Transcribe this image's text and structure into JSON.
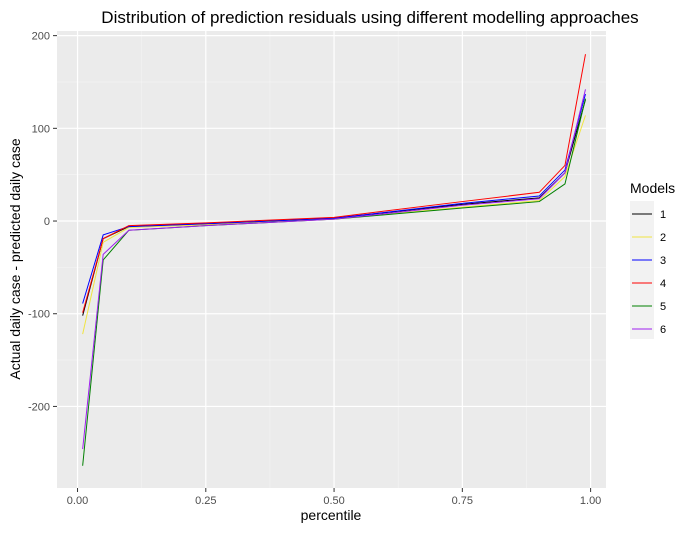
{
  "chart_data": {
    "type": "line",
    "title": "Distribution of prediction residuals using different modelling approaches",
    "xlabel": "percentile",
    "ylabel": "Actual daily case - predicted daily case",
    "xlim": [
      -0.04,
      1.03
    ],
    "ylim": [
      -288,
      205
    ],
    "xticks": [
      0,
      0.25,
      0.5,
      0.75,
      1
    ],
    "xtick_labels": [
      "0.00",
      "0.25",
      "0.50",
      "0.75",
      "1.00"
    ],
    "yticks": [
      -200,
      -100,
      0,
      100,
      200
    ],
    "ytick_labels": [
      "-200",
      "-100",
      "0",
      "100",
      "200"
    ],
    "grid": true,
    "legend": {
      "title": "Models",
      "position": "right"
    },
    "x": [
      0.01,
      0.05,
      0.1,
      0.25,
      0.5,
      0.75,
      0.9,
      0.95,
      0.99
    ],
    "series": [
      {
        "name": "1",
        "color": "#000000",
        "values": [
          -102,
          -19,
          -6,
          -3,
          3,
          18,
          25,
          52,
          131
        ]
      },
      {
        "name": "2",
        "color": "#f0e442",
        "values": [
          -122,
          -23,
          -7,
          -4,
          2,
          15,
          22,
          48,
          114
        ]
      },
      {
        "name": "3",
        "color": "#0000ff",
        "values": [
          -89,
          -15,
          -6,
          -3,
          3,
          19,
          27,
          55,
          137
        ]
      },
      {
        "name": "4",
        "color": "#ff0000",
        "values": [
          -99,
          -19,
          -5,
          -2,
          4,
          21,
          31,
          60,
          180
        ]
      },
      {
        "name": "5",
        "color": "#008000",
        "values": [
          -264,
          -42,
          -10,
          -5,
          2,
          14,
          21,
          40,
          132
        ]
      },
      {
        "name": "6",
        "color": "#a020f0",
        "values": [
          -246,
          -36,
          -10,
          -5,
          2,
          17,
          24,
          52,
          142
        ]
      }
    ]
  }
}
